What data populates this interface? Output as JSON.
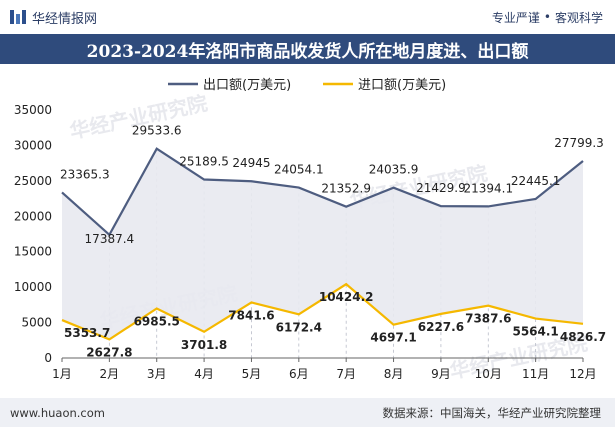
{
  "header": {
    "brand_name": "华经情报网",
    "tagline_left": "专业严谨",
    "tagline_sep": "•",
    "tagline_right": "客观科学"
  },
  "title": "2023-2024年洛阳市商品收发货人所在地月度进、出口额",
  "footer": {
    "url": "www.huaon.com",
    "source": "数据来源：中国海关，华经产业研究院整理"
  },
  "watermark": "华经产业研究院",
  "colors": {
    "title_bg": "#2f4b7c",
    "export_line": "#4e5d80",
    "import_line": "#f5b800",
    "fill": "#e8e9f0"
  },
  "chart_data": {
    "type": "line",
    "categories": [
      "1月",
      "2月",
      "3月",
      "4月",
      "5月",
      "6月",
      "7月",
      "8月",
      "9月",
      "10月",
      "11月",
      "12月"
    ],
    "series": [
      {
        "name": "出口额(万美元)",
        "values": [
          23365.3,
          17387.4,
          29533.6,
          25189.5,
          24945,
          24054.1,
          21352.9,
          24035.9,
          21429.9,
          21394.1,
          22445.1,
          27799.3
        ],
        "labels": [
          "23365.3",
          "17387.4",
          "29533.6",
          "25189.5",
          "24945",
          "24054.1",
          "21352.9",
          "24035.9",
          "21429.9",
          "21394.1",
          "22445.1",
          "27799.3"
        ]
      },
      {
        "name": "进口额(万美元)",
        "values": [
          5353.7,
          2627.8,
          6985.5,
          3701.8,
          7841.6,
          6172.4,
          10424.2,
          4697.1,
          6227.6,
          7387.6,
          5564.1,
          4826.7
        ],
        "labels": [
          "5353.7",
          "2627.8",
          "6985.5",
          "3701.8",
          "7841.6",
          "6172.4",
          "10424.2",
          "4697.1",
          "6227.6",
          "7387.6",
          "5564.1",
          "4826.7"
        ]
      }
    ],
    "ylim": [
      0,
      35000
    ],
    "yticks": [
      0,
      5000,
      10000,
      15000,
      20000,
      25000,
      30000,
      35000
    ],
    "ytick_labels": [
      "0",
      "5000",
      "10000",
      "15000",
      "20000",
      "25000",
      "30000",
      "35000"
    ],
    "legend_position": "top-center"
  }
}
